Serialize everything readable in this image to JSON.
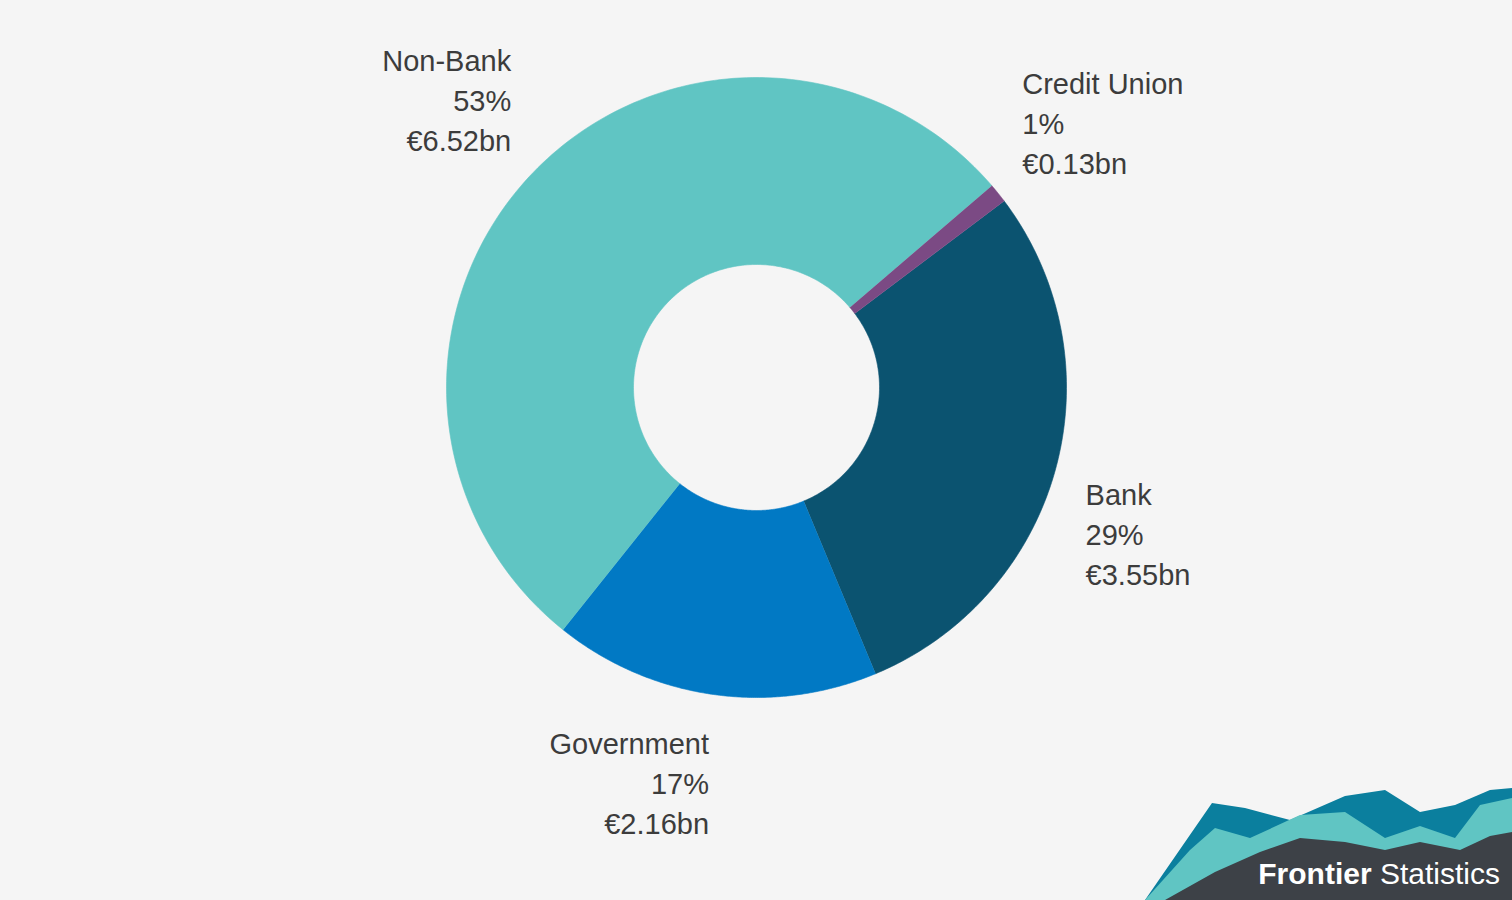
{
  "chart_data": {
    "type": "donut",
    "categories": [
      "Bank",
      "Government",
      "Non-Bank",
      "Credit Union"
    ],
    "values": [
      29,
      17,
      53,
      1
    ],
    "value_labels": [
      "29%",
      "17%",
      "53%",
      "1%"
    ],
    "amount_labels": [
      "€3.55bn",
      "€2.16bn",
      "€6.52bn",
      "€0.13bn"
    ],
    "colors": [
      "#0b5370",
      "#0179c4",
      "#60c5c3",
      "#7b4a84"
    ],
    "data_labels": true,
    "source": "Frontier Statistics"
  }
}
